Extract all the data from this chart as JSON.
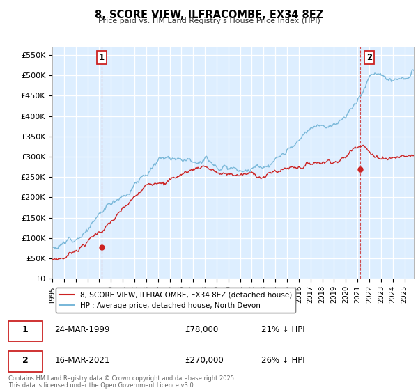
{
  "title": "8, SCORE VIEW, ILFRACOMBE, EX34 8EZ",
  "subtitle": "Price paid vs. HM Land Registry's House Price Index (HPI)",
  "ylabel_ticks": [
    "£0",
    "£50K",
    "£100K",
    "£150K",
    "£200K",
    "£250K",
    "£300K",
    "£350K",
    "£400K",
    "£450K",
    "£500K",
    "£550K"
  ],
  "ytick_values": [
    0,
    50000,
    100000,
    150000,
    200000,
    250000,
    300000,
    350000,
    400000,
    450000,
    500000,
    550000
  ],
  "ylim": [
    0,
    570000
  ],
  "xlim_start": 1995.0,
  "xlim_end": 2025.8,
  "hpi_color": "#7ab8d9",
  "hpi_fill_color": "#daeaf5",
  "price_color": "#cc2222",
  "marker1_x": 1999.22,
  "marker1_y": 78000,
  "marker2_x": 2021.21,
  "marker2_y": 270000,
  "legend_label1": "8, SCORE VIEW, ILFRACOMBE, EX34 8EZ (detached house)",
  "legend_label2": "HPI: Average price, detached house, North Devon",
  "annotation1_label": "1",
  "annotation2_label": "2",
  "table_row1": [
    "1",
    "24-MAR-1999",
    "£78,000",
    "21% ↓ HPI"
  ],
  "table_row2": [
    "2",
    "16-MAR-2021",
    "£270,000",
    "26% ↓ HPI"
  ],
  "footnote": "Contains HM Land Registry data © Crown copyright and database right 2025.\nThis data is licensed under the Open Government Licence v3.0.",
  "background_color": "#ffffff",
  "plot_bg_color": "#ddeeff",
  "grid_color": "#ffffff"
}
